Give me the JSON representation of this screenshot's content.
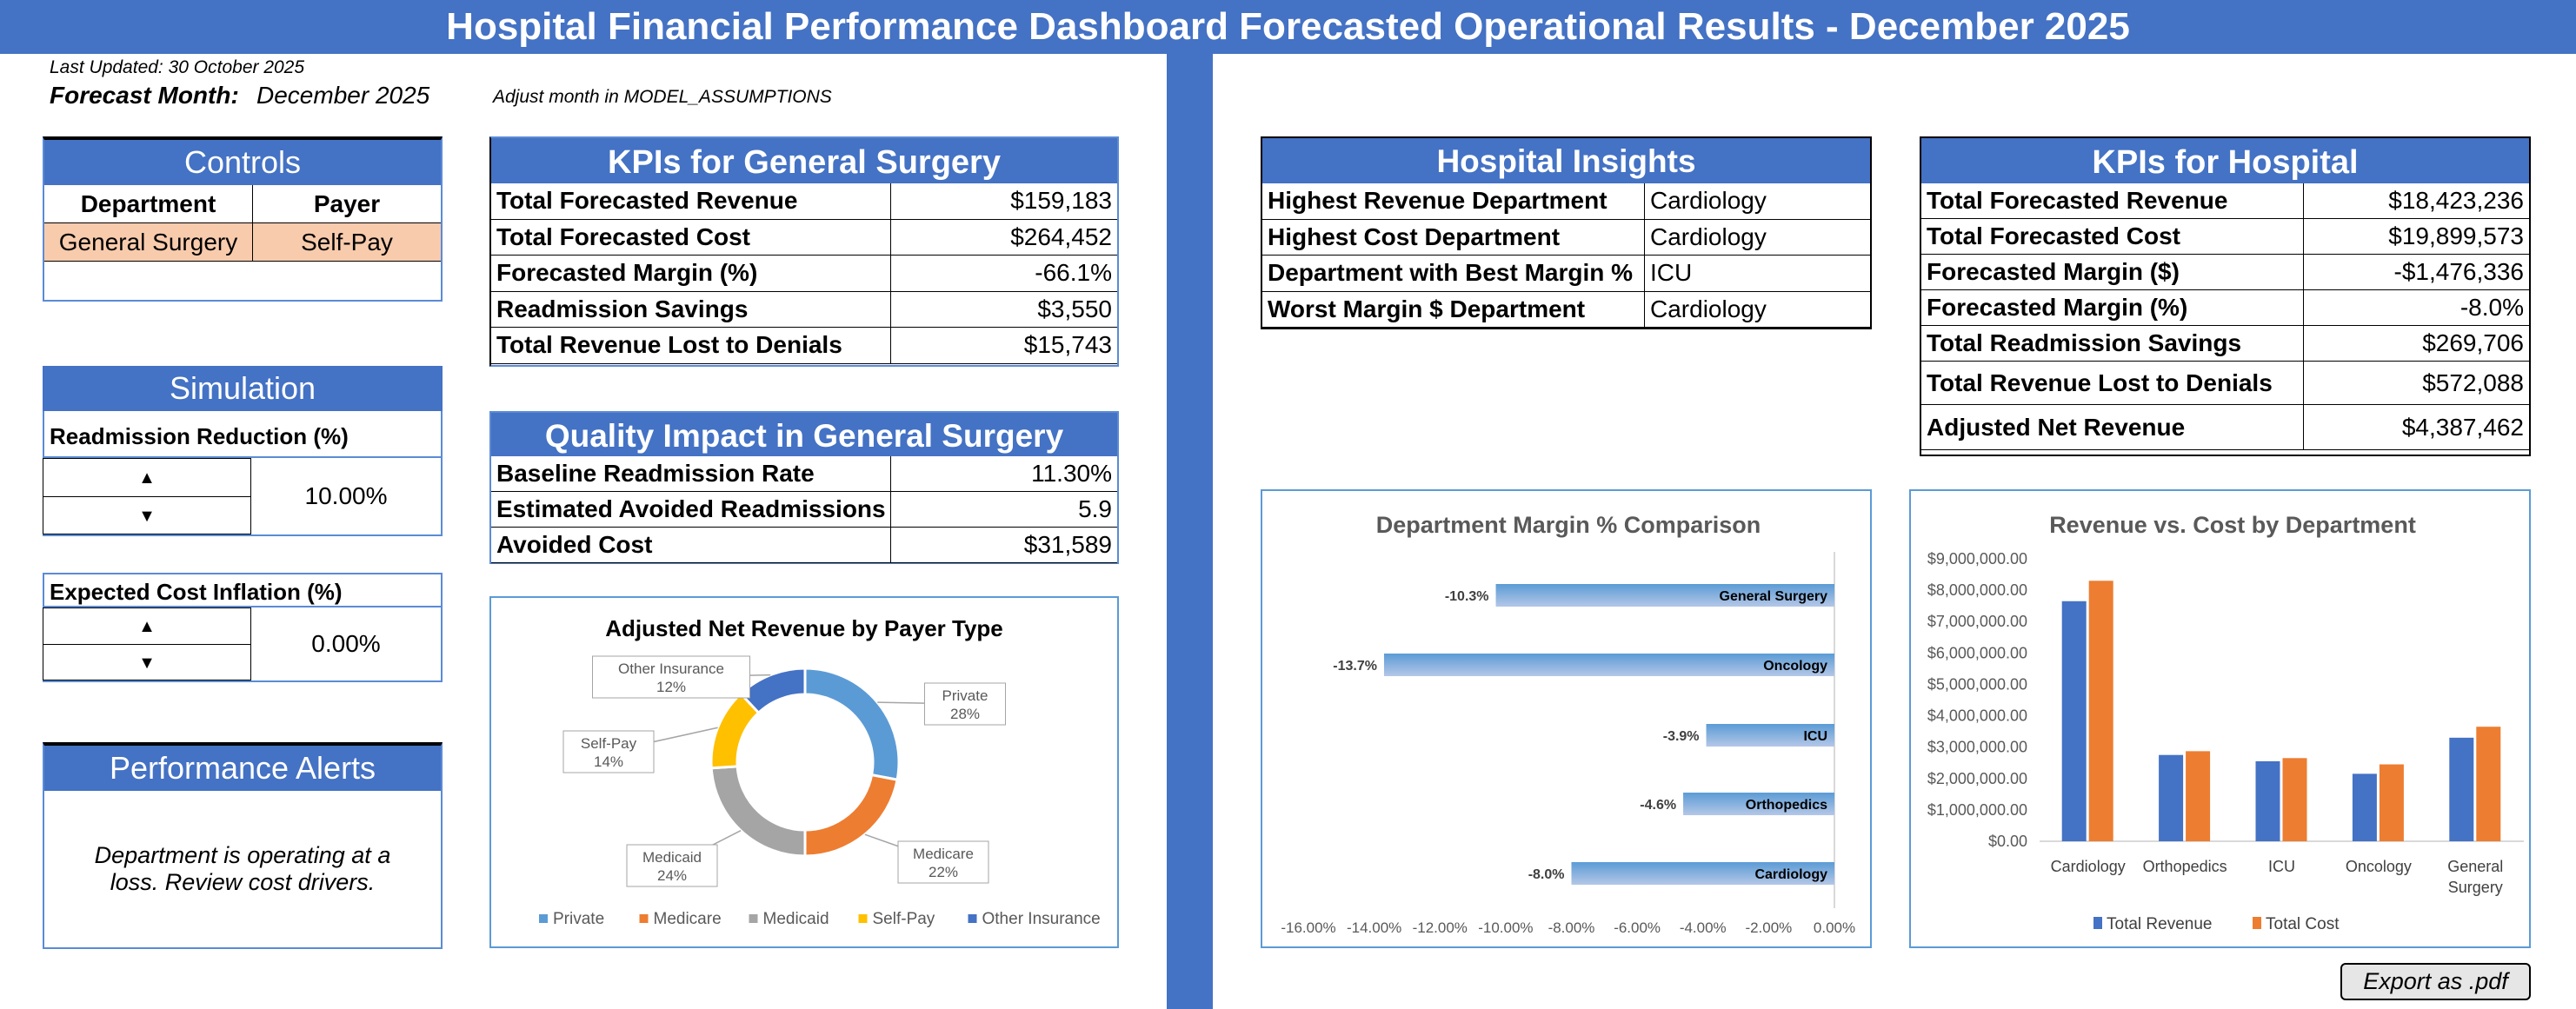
{
  "title": "Hospital Financial Performance Dashboard Forecasted Operational Results - December 2025",
  "last_updated": "Last Updated: 30 October 2025",
  "forecast_month_label": "Forecast Month:",
  "forecast_month_value": "December 2025",
  "adjust_note": "Adjust month in MODEL_ASSUMPTIONS",
  "controls": {
    "title": "Controls",
    "department_label": "Department",
    "payer_label": "Payer",
    "department_value": "General Surgery",
    "payer_value": "Self-Pay"
  },
  "simulation": {
    "title": "Simulation",
    "readmission_label": "Readmission Reduction (%)",
    "readmission_value": "10.00%",
    "inflation_label": "Expected Cost Inflation (%)",
    "inflation_value": "0.00%"
  },
  "alerts": {
    "title": "Performance Alerts",
    "message": "Department is operating at a loss. Review cost drivers."
  },
  "kpis_dept": {
    "title": "KPIs for General Surgery",
    "rows": [
      [
        "Total Forecasted Revenue",
        "$159,183"
      ],
      [
        "Total Forecasted Cost",
        "$264,452"
      ],
      [
        "Forecasted Margin (%)",
        "-66.1%"
      ],
      [
        "Readmission Savings",
        "$3,550"
      ],
      [
        "Total Revenue Lost to Denials",
        "$15,743"
      ]
    ]
  },
  "quality": {
    "title": "Quality Impact in General Surgery",
    "rows": [
      [
        "Baseline Readmission Rate",
        "11.30%"
      ],
      [
        "Estimated Avoided Readmissions",
        "5.9"
      ],
      [
        "Avoided Cost",
        "$31,589"
      ]
    ]
  },
  "insights": {
    "title": "Hospital Insights",
    "rows": [
      [
        "Highest Revenue Department",
        "Cardiology"
      ],
      [
        "Highest Cost Department",
        "Cardiology"
      ],
      [
        "Department with Best Margin %",
        "ICU"
      ],
      [
        "Worst Margin $ Department",
        "Cardiology"
      ]
    ]
  },
  "kpis_hosp": {
    "title": "KPIs for Hospital",
    "rows": [
      [
        "Total Forecasted Revenue",
        "$18,423,236"
      ],
      [
        "Total Forecasted Cost",
        "$19,899,573"
      ],
      [
        "Forecasted Margin ($)",
        "-$1,476,336"
      ],
      [
        "Forecasted Margin (%)",
        "-8.0%"
      ],
      [
        "Total Readmission Savings",
        "$269,706"
      ],
      [
        "Total Revenue Lost to Denials",
        "$572,088"
      ],
      [
        "Adjusted Net Revenue",
        "$4,387,462"
      ]
    ]
  },
  "export_label": "Export as .pdf",
  "chart_data": [
    {
      "type": "pie",
      "title": "Adjusted Net Revenue by Payer Type",
      "categories": [
        "Private",
        "Medicare",
        "Medicaid",
        "Self-Pay",
        "Other Insurance"
      ],
      "values": [
        28,
        22,
        24,
        14,
        12
      ],
      "value_labels": [
        "28%",
        "22%",
        "24%",
        "14%",
        "12%"
      ],
      "colors": [
        "#5B9BD5",
        "#ED7D31",
        "#A5A5A5",
        "#FFC000",
        "#4472C4"
      ],
      "donut": true,
      "legend": "bottom"
    },
    {
      "type": "bar",
      "orientation": "horizontal",
      "title": "Department Margin % Comparison",
      "categories": [
        "General Surgery",
        "Oncology",
        "ICU",
        "Orthopedics",
        "Cardiology"
      ],
      "values": [
        -10.3,
        -13.7,
        -3.9,
        -4.6,
        -8.0
      ],
      "value_labels": [
        "-10.3%",
        "-13.7%",
        "-3.9%",
        "-4.6%",
        "-8.0%"
      ],
      "xlim": [
        -16,
        0
      ],
      "ticks": [
        "-16.00%",
        "-14.00%",
        "-12.00%",
        "-10.00%",
        "-8.00%",
        "-6.00%",
        "-4.00%",
        "-2.00%",
        "0.00%"
      ],
      "color": "#5B9BD5"
    },
    {
      "type": "bar",
      "title": "Revenue vs. Cost by Department",
      "categories": [
        "Cardiology",
        "Orthopedics",
        "ICU",
        "Oncology",
        "General Surgery"
      ],
      "series": [
        {
          "name": "Total Revenue",
          "color": "#4472C4",
          "values": [
            7650000,
            2750000,
            2550000,
            2150000,
            3300000
          ]
        },
        {
          "name": "Total Cost",
          "color": "#ED7D31",
          "values": [
            8300000,
            2870000,
            2650000,
            2450000,
            3650000
          ]
        }
      ],
      "ylim": [
        0,
        9000000
      ],
      "ticks": [
        "$0.00",
        "$1,000,000.00",
        "$2,000,000.00",
        "$3,000,000.00",
        "$4,000,000.00",
        "$5,000,000.00",
        "$6,000,000.00",
        "$7,000,000.00",
        "$8,000,000.00",
        "$9,000,000.00"
      ],
      "legend": "bottom"
    }
  ]
}
